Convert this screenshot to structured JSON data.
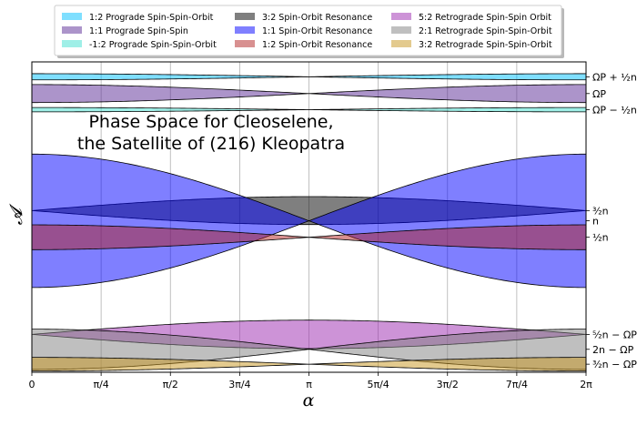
{
  "chart_data": {
    "type": "area",
    "title": [
      "Phase Space for Cleoselene,",
      "the Satellite of (216) Kleopatra"
    ],
    "xlabel": "α",
    "ylabel": "𝓐",
    "xlim": [
      0,
      6.283185307
    ],
    "ylim": [
      0,
      100
    ],
    "grid": "vertical",
    "x_tick_labels": [
      "0",
      "π/4",
      "π/2",
      "3π/4",
      "π",
      "5π/4",
      "3π/2",
      "7π/4",
      "2π"
    ],
    "legend_position": "top-center",
    "right_axis_labels": [
      {
        "label": "ΩP + ½n",
        "value": 95.2
      },
      {
        "label": "ΩP",
        "value": 89.8
      },
      {
        "label": "ΩP − ½n",
        "value": 84.6
      },
      {
        "label": "³⁄₂n",
        "value": 52.1
      },
      {
        "label": "n",
        "value": 48.8
      },
      {
        "label": "½n",
        "value": 43.5
      },
      {
        "label": "⁵⁄₂n − ΩP",
        "value": 12.2
      },
      {
        "label": "2n − ΩP",
        "value": 7.4
      },
      {
        "label": "³⁄₂n − ΩP",
        "value": 2.6
      }
    ],
    "series": [
      {
        "name": "1:2 Prograde Spin-Spin-Orbit",
        "color": "#00bfff",
        "center": 95.2,
        "amplitude": 1.0,
        "harmonic": 2,
        "phase": 0
      },
      {
        "name": "1:1 Prograde Spin-Spin",
        "color": "#5a2a95",
        "center": 89.8,
        "amplitude": 2.9,
        "harmonic": 2,
        "phase": 0
      },
      {
        "name": "-1:2 Prograde Spin-Spin-Orbit",
        "color": "#40e0d0",
        "center": 84.6,
        "amplitude": 0.7,
        "harmonic": 2,
        "phase": 0
      },
      {
        "name": "3:2 Spin-Orbit Resonance",
        "color": "#000000",
        "center": 52.1,
        "amplitude": 4.5,
        "harmonic": 2,
        "phase": 1
      },
      {
        "name": "1:1 Spin-Orbit Resonance",
        "color": "#0000ff",
        "center": 48.8,
        "amplitude": 21.5,
        "harmonic": 2,
        "phase": 0
      },
      {
        "name": "1:2 Spin-Orbit Resonance",
        "color": "#b22222",
        "center": 43.5,
        "amplitude": 4.0,
        "harmonic": 2,
        "phase": 0
      },
      {
        "name": "5:2 Retrograde Spin-Spin Orbit",
        "color": "#9c27b0",
        "center": 12.2,
        "amplitude": 4.6,
        "harmonic": 2,
        "phase": 1
      },
      {
        "name": "2:1 Retrograde Spin-Spin-Orbit",
        "color": "#808080",
        "center": 7.4,
        "amplitude": 6.5,
        "harmonic": 2,
        "phase": 0
      },
      {
        "name": "3:2 Retrograde Spin-Spin-Orbit",
        "color": "#c8961e",
        "center": 2.6,
        "amplitude": 2.2,
        "harmonic": 2,
        "phase": 0
      }
    ]
  }
}
